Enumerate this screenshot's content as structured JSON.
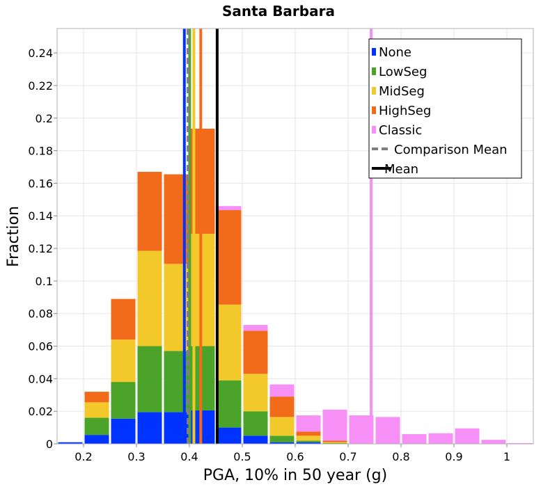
{
  "chart_data": {
    "type": "bar",
    "title": "Santa Barbara",
    "xlabel": "PGA, 10% in 50 year (g)",
    "ylabel": "Fraction",
    "xlim": [
      0.15,
      1.05
    ],
    "ylim": [
      0,
      0.255
    ],
    "xticks": [
      "0.2",
      "0.3",
      "0.4",
      "0.5",
      "0.6",
      "0.7",
      "0.8",
      "0.9",
      "1"
    ],
    "yticks": [
      "0",
      "0.02",
      "0.04",
      "0.06",
      "0.08",
      "0.1",
      "0.12",
      "0.14",
      "0.16",
      "0.18",
      "0.2",
      "0.22",
      "0.24"
    ],
    "grid": true,
    "stacked": true,
    "bin_width": 0.05,
    "bins": [
      0.175,
      0.225,
      0.275,
      0.325,
      0.375,
      0.425,
      0.475,
      0.525,
      0.575,
      0.625,
      0.675,
      0.725,
      0.775,
      0.825,
      0.875,
      0.925,
      0.975,
      1.025
    ],
    "series": [
      {
        "name": "None",
        "color": "#0033ff",
        "values": [
          0.001,
          0.0055,
          0.0155,
          0.0195,
          0.0195,
          0.0205,
          0.01,
          0.005,
          0.001,
          0.001,
          0,
          0,
          0,
          0,
          0,
          0,
          0,
          0
        ]
      },
      {
        "name": "LowSeg",
        "color": "#4ba32a",
        "values": [
          0,
          0.0105,
          0.0225,
          0.0405,
          0.0375,
          0.0395,
          0.029,
          0.015,
          0.004,
          0.001,
          0.0005,
          0,
          0,
          0,
          0,
          0,
          0,
          0
        ]
      },
      {
        "name": "MidSeg",
        "color": "#f2c82a",
        "values": [
          0,
          0.0095,
          0.026,
          0.0585,
          0.0535,
          0.069,
          0.0465,
          0.023,
          0.0115,
          0.003,
          0.0005,
          0,
          0,
          0,
          0,
          0,
          0,
          0
        ]
      },
      {
        "name": "HighSeg",
        "color": "#f26b1a",
        "values": [
          0,
          0.0065,
          0.025,
          0.0485,
          0.055,
          0.0645,
          0.058,
          0.0265,
          0.0125,
          0.0025,
          0.001,
          0,
          0,
          0,
          0,
          0,
          0,
          0
        ]
      },
      {
        "name": "Classic",
        "color": "#f690f6",
        "values": [
          0,
          0,
          0,
          0,
          0,
          0,
          0.0025,
          0.0035,
          0.0075,
          0.01,
          0.019,
          0.0175,
          0.0165,
          0.006,
          0.0065,
          0.0095,
          0.0025,
          0.0005
        ]
      }
    ],
    "vlines": [
      {
        "name": "None",
        "x": 0.3905,
        "color": "#0033ff",
        "style": "solid"
      },
      {
        "name": "LowSeg",
        "x": 0.4005,
        "color": "#4ba32a",
        "style": "solid"
      },
      {
        "name": "MidSeg",
        "x": 0.4085,
        "color": "#f2c82a",
        "style": "solid"
      },
      {
        "name": "HighSeg",
        "x": 0.4215,
        "color": "#f26b1a",
        "style": "solid"
      },
      {
        "name": "Classic",
        "x": 0.7435,
        "color": "#f690f6",
        "style": "solid"
      },
      {
        "name": "Comparison Mean",
        "x": 0.3975,
        "color": "#808080",
        "style": "dashed"
      },
      {
        "name": "Mean",
        "x": 0.4525,
        "color": "#000000",
        "style": "solid"
      }
    ],
    "legend": {
      "position": "top-right",
      "entries": [
        {
          "label": "None",
          "color": "#0033ff",
          "kind": "box"
        },
        {
          "label": "LowSeg",
          "color": "#4ba32a",
          "kind": "box"
        },
        {
          "label": "MidSeg",
          "color": "#f2c82a",
          "kind": "box"
        },
        {
          "label": "HighSeg",
          "color": "#f26b1a",
          "kind": "box"
        },
        {
          "label": "Classic",
          "color": "#f690f6",
          "kind": "box"
        },
        {
          "label": "Comparison Mean",
          "color": "#808080",
          "kind": "dashed-line"
        },
        {
          "label": "Mean",
          "color": "#000000",
          "kind": "line"
        }
      ]
    }
  }
}
